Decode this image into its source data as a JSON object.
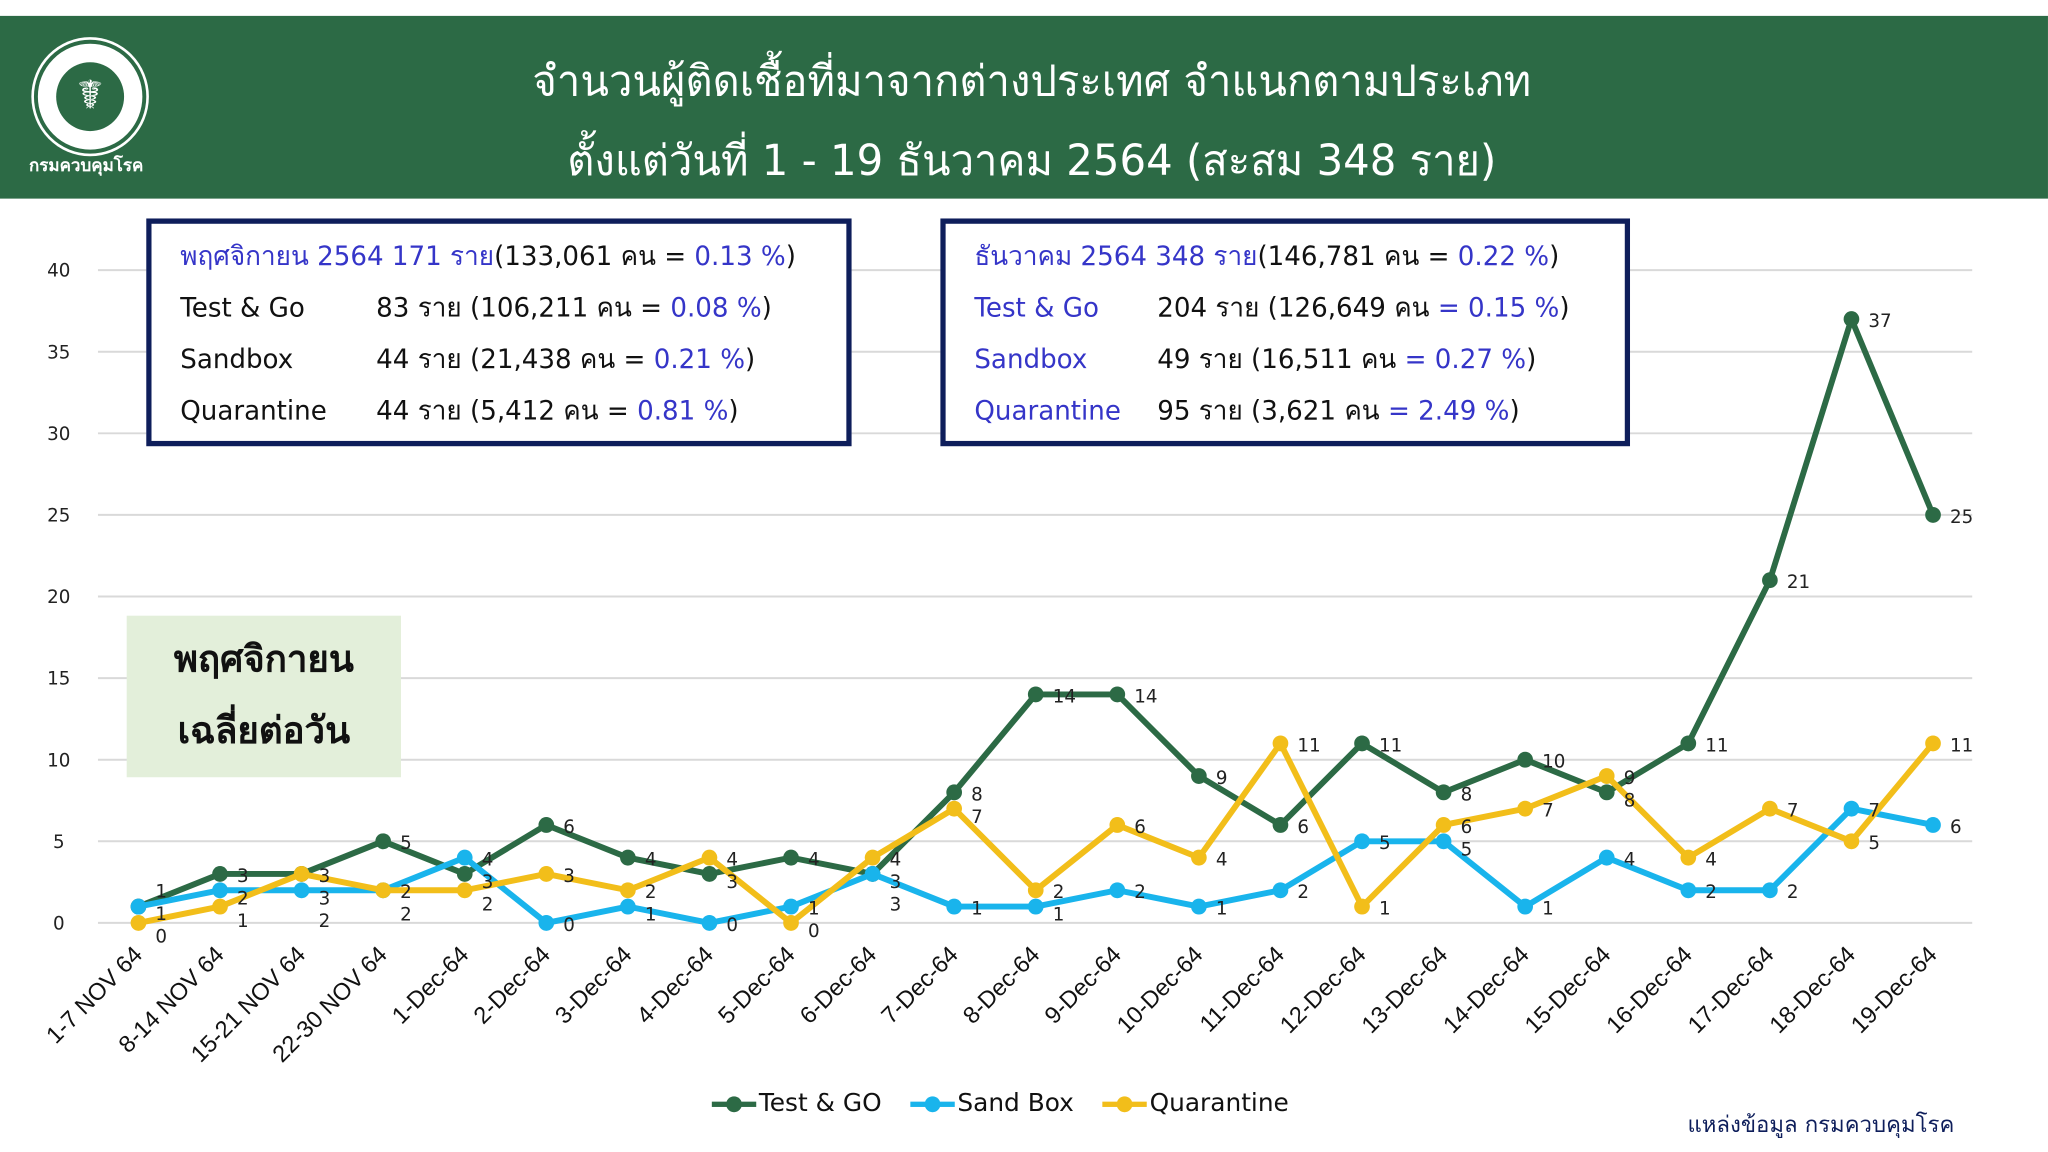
{
  "header": {
    "title_line1": "จำนวนผู้ติดเชื้อที่มาจากต่างประเทศ จำแนกตามประเภท",
    "title_line2": "ตั้งแต่วันที่  1 - 19  ธันวาคม  2564 (สะสม 348 ราย)",
    "logo_text": "กรมควบคุมโรค"
  },
  "nov_box": {
    "rows": [
      [
        "พฤศจิกายน 2564  171 ราย",
        "(133,061 คน = ",
        "0.13 %",
        ")"
      ],
      [
        "Test & Go",
        "83  ราย (106,211 คน = ",
        "0.08 %",
        ")"
      ],
      [
        "Sandbox",
        "44  ราย  (21,438 คน  = ",
        "0.21 %",
        ")"
      ],
      [
        "Quarantine",
        "44  ราย  (5,412 คน    = ",
        "0.81 %",
        ")"
      ]
    ]
  },
  "dec_box": {
    "rows": [
      [
        "ธันวาคม 2564  348 ราย",
        "(146,781 คน = ",
        "0.22 %",
        ")"
      ],
      [
        "Test & Go",
        "204  ราย (126,649 คน ",
        "= 0.15 %",
        ")"
      ],
      [
        "Sandbox",
        "49  ราย (16,511 คน    ",
        "= 0.27 %",
        ")"
      ],
      [
        "Quarantine",
        "95  ราย (3,621 คน     ",
        "= 2.49 %",
        ")"
      ]
    ]
  },
  "avg_label": {
    "line1": "พฤศจิกายน",
    "line2": "เฉลี่ยต่อวัน"
  },
  "source": "แหล่งข้อมูล  กรมควบคุมโรค",
  "chart_data": {
    "type": "line",
    "title": "จำนวนผู้ติดเชื้อที่มาจากต่างประเทศ จำแนกตามประเภท",
    "ylim": [
      0,
      40
    ],
    "yticks": [
      0,
      5,
      10,
      15,
      20,
      25,
      30,
      35,
      40
    ],
    "grid": true,
    "legend": "bottom",
    "categories": [
      "1-7 NOV 64",
      "8-14 NOV 64",
      "15-21 NOV 64",
      "22-30 NOV 64",
      "1-Dec-64",
      "2-Dec-64",
      "3-Dec-64",
      "4-Dec-64",
      "5-Dec-64",
      "6-Dec-64",
      "7-Dec-64",
      "8-Dec-64",
      "9-Dec-64",
      "10-Dec-64",
      "11-Dec-64",
      "12-Dec-64",
      "13-Dec-64",
      "14-Dec-64",
      "15-Dec-64",
      "16-Dec-64",
      "17-Dec-64",
      "18-Dec-64",
      "19-Dec-64"
    ],
    "series": [
      {
        "name": "Test & GO",
        "color": "#2C6A45",
        "values": [
          1,
          3,
          3,
          5,
          3,
          6,
          4,
          3,
          4,
          3,
          8,
          14,
          14,
          9,
          6,
          11,
          8,
          10,
          8,
          11,
          21,
          37,
          25
        ]
      },
      {
        "name": "Sand Box",
        "color": "#19B4EC",
        "values": [
          1,
          2,
          2,
          2,
          4,
          0,
          1,
          0,
          1,
          3,
          1,
          1,
          2,
          1,
          2,
          5,
          5,
          1,
          4,
          2,
          2,
          7,
          6
        ]
      },
      {
        "name": "Quarantine",
        "color": "#F2BE1A",
        "values": [
          0,
          1,
          3,
          2,
          2,
          3,
          2,
          4,
          0,
          4,
          7,
          2,
          6,
          4,
          11,
          1,
          6,
          7,
          9,
          4,
          7,
          5,
          11
        ]
      }
    ]
  }
}
